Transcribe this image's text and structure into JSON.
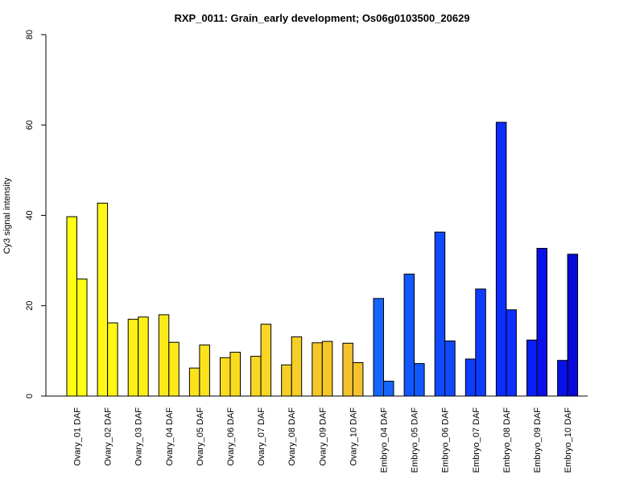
{
  "chart_data": {
    "type": "bar",
    "title": "RXP_0011: Grain_early development; Os06g0103500_20629",
    "xlabel": "",
    "ylabel": "Cy3 signal intensity",
    "ylim": [
      0,
      80
    ],
    "yticks": [
      0,
      20,
      40,
      60,
      80
    ],
    "grid": false,
    "categories": [
      "Ovary_01 DAF",
      "Ovary_02 DAF",
      "Ovary_03 DAF",
      "Ovary_04 DAF",
      "Ovary_05 DAF",
      "Ovary_06 DAF",
      "Ovary_07 DAF",
      "Ovary_08 DAF",
      "Ovary_09 DAF",
      "Ovary_10 DAF",
      "Embryo_04 DAF",
      "Embryo_05 DAF",
      "Embryo_06 DAF",
      "Embryo_07 DAF",
      "Embryo_08 DAF",
      "Embryo_09 DAF",
      "Embryo_10 DAF"
    ],
    "series": [
      {
        "values": [
          39.7,
          42.7,
          17.0,
          18.0,
          6.2,
          8.5,
          8.8,
          6.9,
          11.8,
          11.7,
          21.6,
          27.0,
          36.3,
          8.2,
          60.6,
          12.4,
          7.9
        ]
      },
      {
        "values": [
          25.9,
          16.2,
          17.5,
          11.9,
          11.3,
          9.7,
          15.9,
          13.1,
          12.1,
          7.4,
          3.3,
          7.2,
          12.2,
          23.7,
          19.1,
          32.7,
          31.4
        ]
      }
    ],
    "bar_colors": [
      "#FFFF11",
      "#FFF714",
      "#FCF017",
      "#FBEA1A",
      "#FAE31D",
      "#F9DC20",
      "#F8D623",
      "#F6CF26",
      "#F5C829",
      "#F4C22C",
      "#1466FF",
      "#1258FF",
      "#104AFF",
      "#0E3CFF",
      "#0C2EFF",
      "#0A20F8",
      "#0812E8"
    ],
    "bar_colors_series2": [
      "#FFFF11",
      "#FFF714",
      "#FCF017",
      "#FBEA1A",
      "#FAE31D",
      "#F9DC20",
      "#F8D623",
      "#F6CF26",
      "#F5C829",
      "#F4C22C",
      "#1466FF",
      "#1258FF",
      "#104AFF",
      "#0E3CFF",
      "#0C2EFF",
      "#0A10E8",
      "#0808D8"
    ]
  }
}
